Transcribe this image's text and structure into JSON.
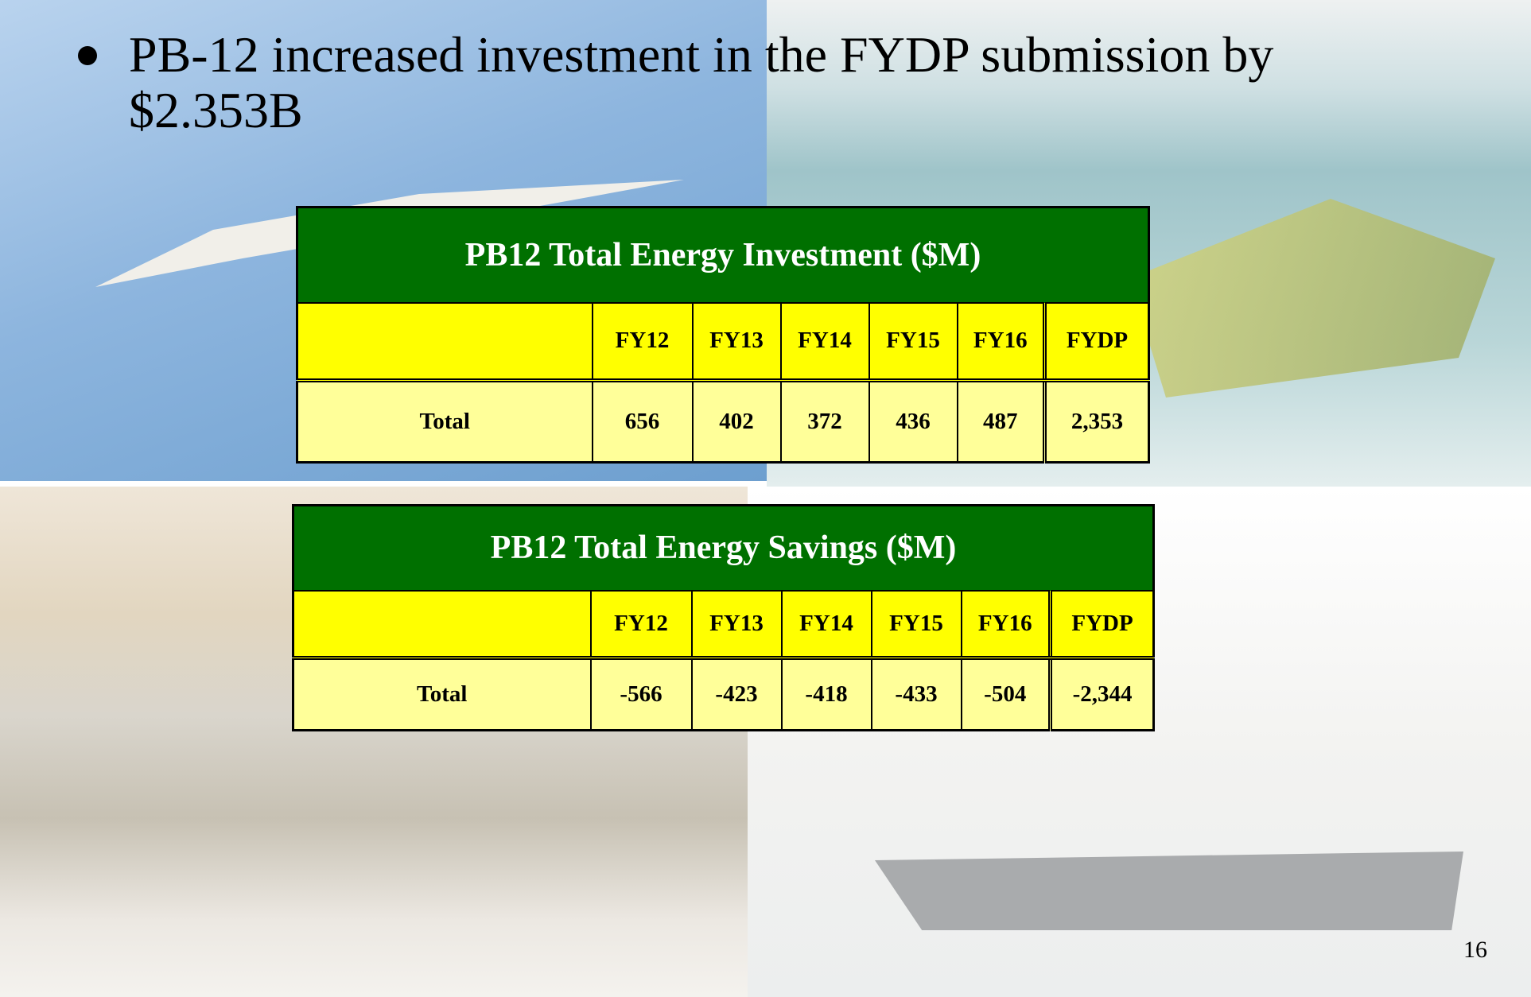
{
  "bullet": "PB-12 increased investment in the FYDP submission by $2.353B",
  "tables": [
    {
      "title": "PB12 Total Energy Investment ($M)",
      "header": [
        "FY12",
        "FY13",
        "FY14",
        "FY15",
        "FY16",
        "FYDP"
      ],
      "rows": [
        [
          "Total",
          "656",
          "402",
          "372",
          "436",
          "487",
          "2,353"
        ]
      ]
    },
    {
      "title": "PB12 Total Energy Savings ($M)",
      "header": [
        "FY12",
        "FY13",
        "FY14",
        "FY15",
        "FY16",
        "FYDP"
      ],
      "rows": [
        [
          "Total",
          "-566",
          "-423",
          "-418",
          "-433",
          "-504",
          "-2,344"
        ]
      ]
    }
  ],
  "page_number": "16"
}
